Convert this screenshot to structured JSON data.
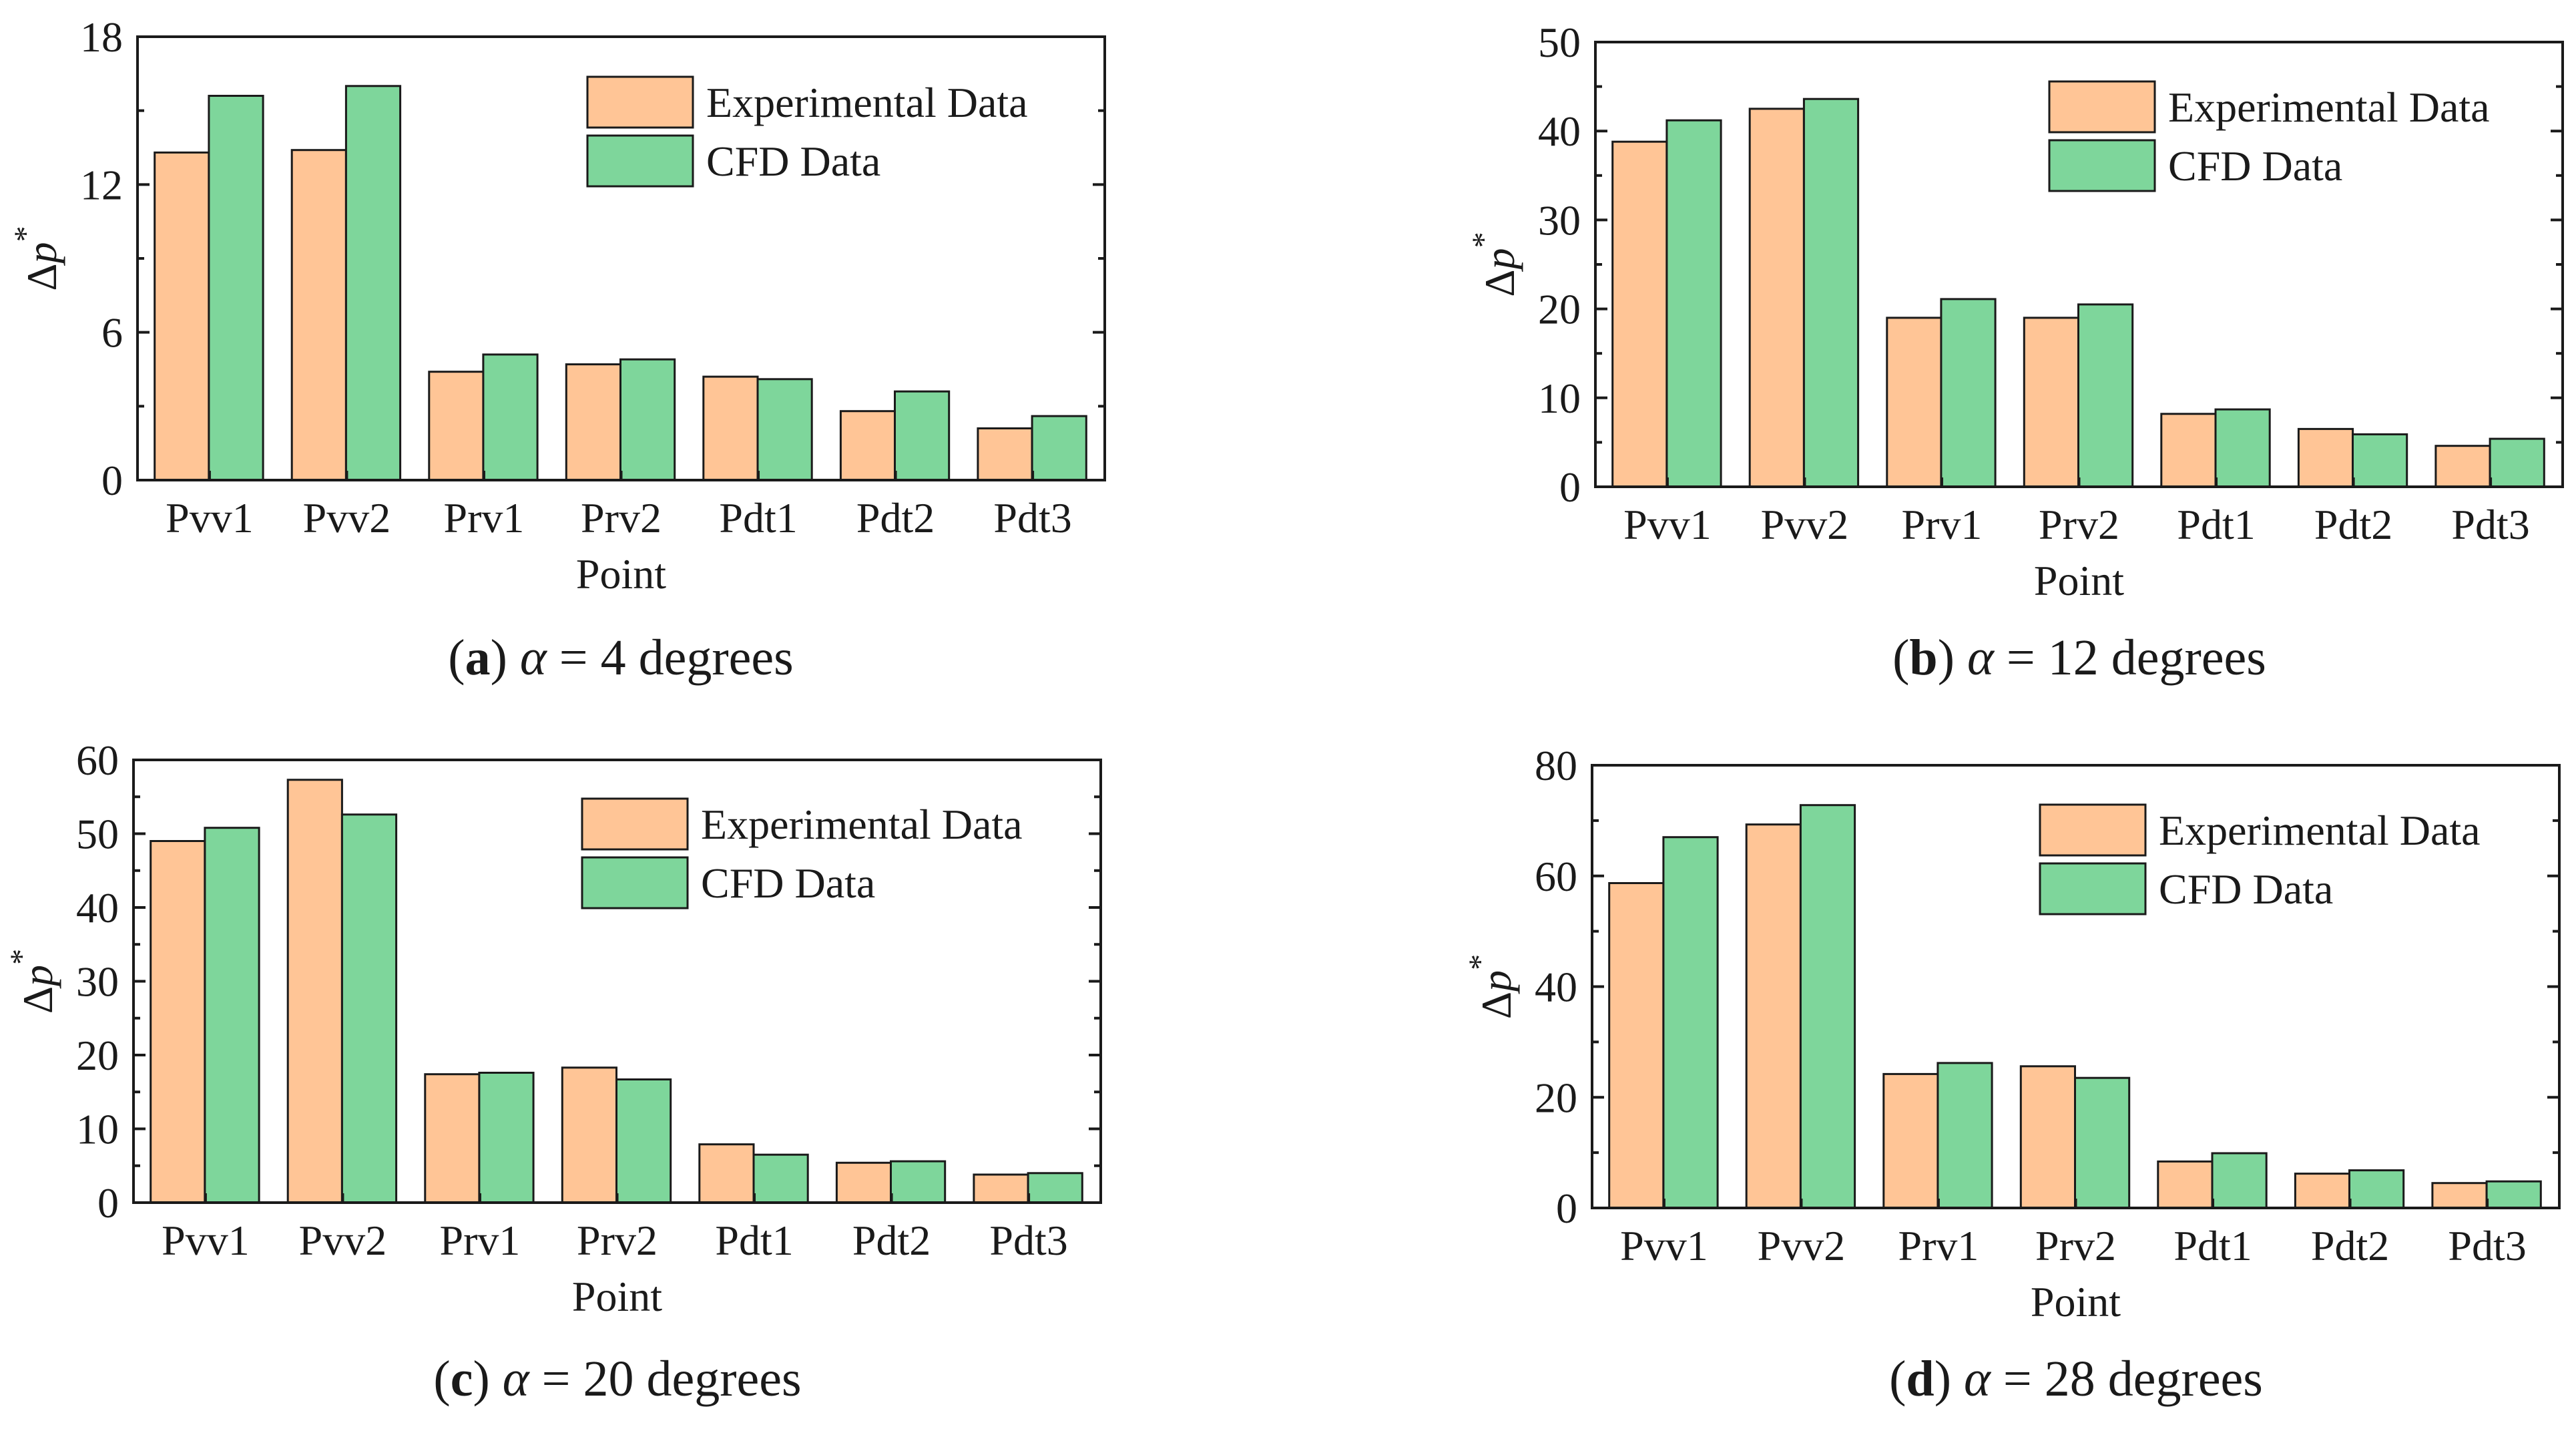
{
  "figure": {
    "series_colors": {
      "Experimental Data": "#FFC596",
      "CFD Data": "#7ED69B"
    },
    "ylabel_symbol": "Δp",
    "ylabel_superscript": "*"
  },
  "chart_data": [
    {
      "type": "bar",
      "panel": "a",
      "caption_letter": "a",
      "caption_symbol": "α",
      "caption_text": " = 4 degrees",
      "categories": [
        "Pvv1",
        "Pvv2",
        "Prv1",
        "Prv2",
        "Pdt1",
        "Pdt2",
        "Pdt3"
      ],
      "series": [
        {
          "name": "Experimental Data",
          "values": [
            13.3,
            13.4,
            4.4,
            4.7,
            4.2,
            2.8,
            2.1
          ]
        },
        {
          "name": "CFD Data",
          "values": [
            15.6,
            16.0,
            5.1,
            4.9,
            4.1,
            3.6,
            2.6
          ]
        }
      ],
      "xlabel": "Point",
      "ylabel": "Δp*",
      "ylim": [
        0,
        18
      ],
      "yticks": [
        "0",
        "6",
        "12",
        "18"
      ],
      "legend": "top-right",
      "grid": false
    },
    {
      "type": "bar",
      "panel": "b",
      "caption_letter": "b",
      "caption_symbol": "α",
      "caption_text": " = 12 degrees",
      "categories": [
        "Pvv1",
        "Pvv2",
        "Prv1",
        "Prv2",
        "Pdt1",
        "Pdt2",
        "Pdt3"
      ],
      "series": [
        {
          "name": "Experimental Data",
          "values": [
            38.8,
            42.5,
            19.0,
            19.0,
            8.2,
            6.5,
            4.6
          ]
        },
        {
          "name": "CFD Data",
          "values": [
            41.2,
            43.6,
            21.1,
            20.5,
            8.7,
            5.9,
            5.4
          ]
        }
      ],
      "xlabel": "Point",
      "ylabel": "Δp*",
      "ylim": [
        0,
        50
      ],
      "yticks": [
        "0",
        "10",
        "20",
        "30",
        "40",
        "50"
      ],
      "legend": "top-right",
      "grid": false
    },
    {
      "type": "bar",
      "panel": "c",
      "caption_letter": "c",
      "caption_symbol": "α",
      "caption_text": " = 20 degrees",
      "categories": [
        "Pvv1",
        "Pvv2",
        "Prv1",
        "Prv2",
        "Pdt1",
        "Pdt2",
        "Pdt3"
      ],
      "series": [
        {
          "name": "Experimental Data",
          "values": [
            49.0,
            57.3,
            17.4,
            18.3,
            7.9,
            5.4,
            3.8
          ]
        },
        {
          "name": "CFD Data",
          "values": [
            50.8,
            52.6,
            17.6,
            16.7,
            6.5,
            5.6,
            4.0
          ]
        }
      ],
      "xlabel": "Point",
      "ylabel": "Δp*",
      "ylim": [
        0,
        60
      ],
      "yticks": [
        "0",
        "10",
        "20",
        "30",
        "40",
        "50",
        "60"
      ],
      "legend": "top-right",
      "grid": false
    },
    {
      "type": "bar",
      "panel": "d",
      "caption_letter": "d",
      "caption_symbol": "α",
      "caption_text": " = 28 degrees",
      "categories": [
        "Pvv1",
        "Pvv2",
        "Prv1",
        "Prv2",
        "Pdt1",
        "Pdt2",
        "Pdt3"
      ],
      "series": [
        {
          "name": "Experimental Data",
          "values": [
            58.7,
            69.3,
            24.2,
            25.6,
            8.4,
            6.2,
            4.5
          ]
        },
        {
          "name": "CFD Data",
          "values": [
            67.0,
            72.8,
            26.2,
            23.5,
            9.9,
            6.8,
            4.8
          ]
        }
      ],
      "xlabel": "Point",
      "ylabel": "Δp*",
      "ylim": [
        0,
        80
      ],
      "yticks": [
        "0",
        "20",
        "40",
        "60",
        "80"
      ],
      "legend": "top-right",
      "grid": false
    }
  ]
}
